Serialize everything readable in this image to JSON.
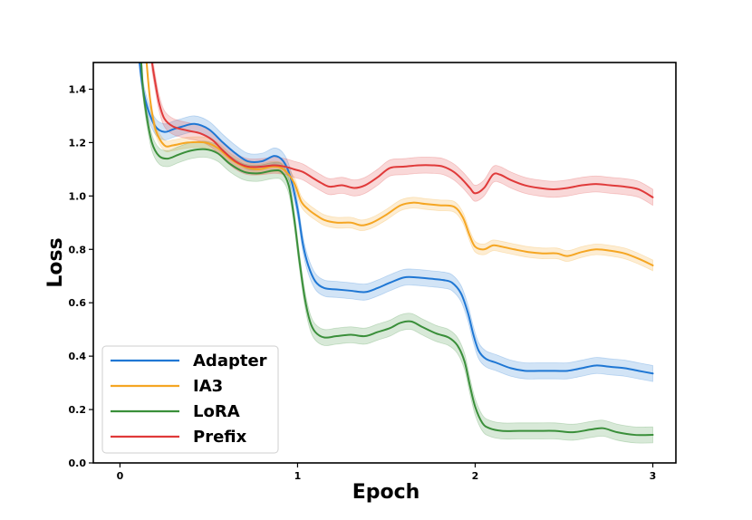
{
  "chart_data": {
    "type": "line",
    "title": "",
    "xlabel": "Epoch",
    "ylabel": "Loss",
    "xlim": [
      -0.15,
      3.13
    ],
    "ylim": [
      0.0,
      1.5
    ],
    "xticks": [
      0,
      1,
      2,
      3
    ],
    "xtick_labels": [
      "0",
      "1",
      "2",
      "3"
    ],
    "yticks": [
      0.0,
      0.2,
      0.4,
      0.6,
      0.8,
      1.0,
      1.2,
      1.4
    ],
    "ytick_labels": [
      "0.0",
      "0.2",
      "0.4",
      "0.6",
      "0.8",
      "1.0",
      "1.2",
      "1.4"
    ],
    "grid": false,
    "legend_position": "lower-left",
    "series": [
      {
        "name": "Adapter",
        "color": "#1f77d4",
        "band": 0.03,
        "points": [
          [
            0.11,
            1.5
          ],
          [
            0.13,
            1.4
          ],
          [
            0.16,
            1.32
          ],
          [
            0.2,
            1.26
          ],
          [
            0.25,
            1.24
          ],
          [
            0.3,
            1.25
          ],
          [
            0.35,
            1.26
          ],
          [
            0.42,
            1.27
          ],
          [
            0.5,
            1.25
          ],
          [
            0.58,
            1.2
          ],
          [
            0.65,
            1.16
          ],
          [
            0.72,
            1.13
          ],
          [
            0.8,
            1.13
          ],
          [
            0.87,
            1.15
          ],
          [
            0.92,
            1.13
          ],
          [
            0.96,
            1.07
          ],
          [
            1.0,
            0.95
          ],
          [
            1.03,
            0.82
          ],
          [
            1.06,
            0.74
          ],
          [
            1.1,
            0.68
          ],
          [
            1.15,
            0.655
          ],
          [
            1.22,
            0.65
          ],
          [
            1.3,
            0.645
          ],
          [
            1.38,
            0.64
          ],
          [
            1.45,
            0.655
          ],
          [
            1.52,
            0.675
          ],
          [
            1.6,
            0.695
          ],
          [
            1.67,
            0.695
          ],
          [
            1.75,
            0.69
          ],
          [
            1.82,
            0.685
          ],
          [
            1.87,
            0.675
          ],
          [
            1.92,
            0.635
          ],
          [
            1.96,
            0.56
          ],
          [
            1.99,
            0.48
          ],
          [
            2.02,
            0.42
          ],
          [
            2.06,
            0.39
          ],
          [
            2.12,
            0.375
          ],
          [
            2.2,
            0.355
          ],
          [
            2.28,
            0.345
          ],
          [
            2.36,
            0.345
          ],
          [
            2.45,
            0.345
          ],
          [
            2.52,
            0.345
          ],
          [
            2.6,
            0.355
          ],
          [
            2.68,
            0.365
          ],
          [
            2.76,
            0.36
          ],
          [
            2.84,
            0.355
          ],
          [
            2.92,
            0.345
          ],
          [
            3.0,
            0.335
          ]
        ]
      },
      {
        "name": "IA3",
        "color": "#f5a623",
        "band": 0.02,
        "points": [
          [
            0.15,
            1.5
          ],
          [
            0.17,
            1.36
          ],
          [
            0.2,
            1.25
          ],
          [
            0.25,
            1.19
          ],
          [
            0.3,
            1.19
          ],
          [
            0.38,
            1.2
          ],
          [
            0.48,
            1.2
          ],
          [
            0.55,
            1.18
          ],
          [
            0.62,
            1.14
          ],
          [
            0.7,
            1.11
          ],
          [
            0.78,
            1.1
          ],
          [
            0.86,
            1.11
          ],
          [
            0.92,
            1.1
          ],
          [
            0.98,
            1.05
          ],
          [
            1.02,
            0.98
          ],
          [
            1.06,
            0.95
          ],
          [
            1.1,
            0.93
          ],
          [
            1.15,
            0.91
          ],
          [
            1.22,
            0.9
          ],
          [
            1.3,
            0.9
          ],
          [
            1.36,
            0.89
          ],
          [
            1.42,
            0.9
          ],
          [
            1.5,
            0.93
          ],
          [
            1.58,
            0.965
          ],
          [
            1.65,
            0.975
          ],
          [
            1.72,
            0.97
          ],
          [
            1.8,
            0.965
          ],
          [
            1.88,
            0.96
          ],
          [
            1.93,
            0.92
          ],
          [
            1.97,
            0.85
          ],
          [
            2.0,
            0.81
          ],
          [
            2.05,
            0.8
          ],
          [
            2.1,
            0.815
          ],
          [
            2.15,
            0.81
          ],
          [
            2.22,
            0.8
          ],
          [
            2.3,
            0.79
          ],
          [
            2.38,
            0.785
          ],
          [
            2.46,
            0.785
          ],
          [
            2.52,
            0.775
          ],
          [
            2.6,
            0.79
          ],
          [
            2.68,
            0.8
          ],
          [
            2.76,
            0.795
          ],
          [
            2.84,
            0.785
          ],
          [
            2.92,
            0.765
          ],
          [
            3.0,
            0.74
          ]
        ]
      },
      {
        "name": "LoRA",
        "color": "#3a8f3a",
        "band": 0.03,
        "points": [
          [
            0.12,
            1.5
          ],
          [
            0.13,
            1.4
          ],
          [
            0.15,
            1.3
          ],
          [
            0.18,
            1.2
          ],
          [
            0.22,
            1.15
          ],
          [
            0.27,
            1.14
          ],
          [
            0.33,
            1.155
          ],
          [
            0.4,
            1.17
          ],
          [
            0.48,
            1.175
          ],
          [
            0.55,
            1.16
          ],
          [
            0.62,
            1.12
          ],
          [
            0.7,
            1.09
          ],
          [
            0.78,
            1.085
          ],
          [
            0.86,
            1.095
          ],
          [
            0.91,
            1.09
          ],
          [
            0.95,
            1.04
          ],
          [
            0.98,
            0.92
          ],
          [
            1.01,
            0.76
          ],
          [
            1.04,
            0.62
          ],
          [
            1.07,
            0.53
          ],
          [
            1.1,
            0.49
          ],
          [
            1.15,
            0.47
          ],
          [
            1.22,
            0.475
          ],
          [
            1.3,
            0.48
          ],
          [
            1.38,
            0.475
          ],
          [
            1.45,
            0.49
          ],
          [
            1.52,
            0.505
          ],
          [
            1.58,
            0.525
          ],
          [
            1.64,
            0.53
          ],
          [
            1.7,
            0.51
          ],
          [
            1.78,
            0.485
          ],
          [
            1.85,
            0.47
          ],
          [
            1.9,
            0.44
          ],
          [
            1.94,
            0.38
          ],
          [
            1.97,
            0.29
          ],
          [
            2.0,
            0.21
          ],
          [
            2.04,
            0.15
          ],
          [
            2.08,
            0.13
          ],
          [
            2.15,
            0.12
          ],
          [
            2.25,
            0.12
          ],
          [
            2.35,
            0.12
          ],
          [
            2.45,
            0.12
          ],
          [
            2.55,
            0.115
          ],
          [
            2.65,
            0.125
          ],
          [
            2.72,
            0.13
          ],
          [
            2.8,
            0.115
          ],
          [
            2.9,
            0.105
          ],
          [
            3.0,
            0.105
          ]
        ]
      },
      {
        "name": "Prefix",
        "color": "#e03a3a",
        "band": 0.03,
        "points": [
          [
            0.18,
            1.5
          ],
          [
            0.2,
            1.42
          ],
          [
            0.22,
            1.35
          ],
          [
            0.25,
            1.29
          ],
          [
            0.3,
            1.26
          ],
          [
            0.38,
            1.245
          ],
          [
            0.45,
            1.235
          ],
          [
            0.52,
            1.21
          ],
          [
            0.58,
            1.17
          ],
          [
            0.65,
            1.13
          ],
          [
            0.72,
            1.11
          ],
          [
            0.8,
            1.11
          ],
          [
            0.87,
            1.115
          ],
          [
            0.93,
            1.11
          ],
          [
            0.98,
            1.1
          ],
          [
            1.03,
            1.09
          ],
          [
            1.08,
            1.07
          ],
          [
            1.13,
            1.05
          ],
          [
            1.18,
            1.035
          ],
          [
            1.25,
            1.04
          ],
          [
            1.32,
            1.03
          ],
          [
            1.38,
            1.04
          ],
          [
            1.45,
            1.07
          ],
          [
            1.52,
            1.105
          ],
          [
            1.6,
            1.11
          ],
          [
            1.68,
            1.115
          ],
          [
            1.76,
            1.115
          ],
          [
            1.82,
            1.11
          ],
          [
            1.88,
            1.09
          ],
          [
            1.93,
            1.06
          ],
          [
            1.97,
            1.03
          ],
          [
            2.0,
            1.01
          ],
          [
            2.05,
            1.03
          ],
          [
            2.1,
            1.08
          ],
          [
            2.14,
            1.08
          ],
          [
            2.2,
            1.06
          ],
          [
            2.28,
            1.04
          ],
          [
            2.36,
            1.03
          ],
          [
            2.44,
            1.025
          ],
          [
            2.52,
            1.03
          ],
          [
            2.6,
            1.04
          ],
          [
            2.68,
            1.045
          ],
          [
            2.76,
            1.04
          ],
          [
            2.84,
            1.035
          ],
          [
            2.92,
            1.025
          ],
          [
            3.0,
            0.995
          ]
        ]
      }
    ]
  }
}
